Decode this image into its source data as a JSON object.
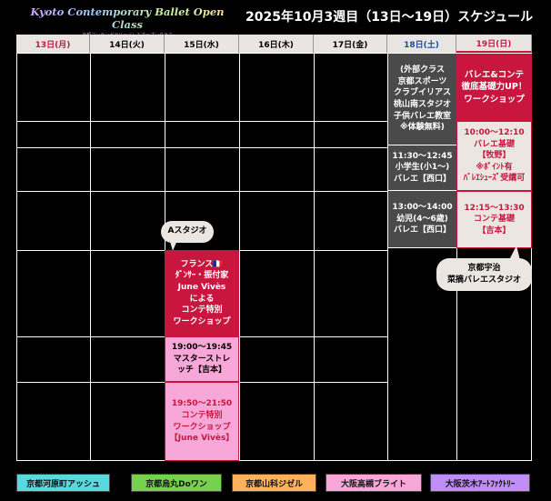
{
  "logo": {
    "title": "Kyoto Contemporary Ballet Open Class",
    "subtitle": "京都コンテンポラリーバレエオープンクラス"
  },
  "title": "2025年10月3週目（13日〜19日）スケジュール",
  "days": [
    {
      "label": "13日(月)",
      "color": "#c8163f"
    },
    {
      "label": "14日(火)",
      "color": "#000000"
    },
    {
      "label": "15日(水)",
      "color": "#000000"
    },
    {
      "label": "16日(木)",
      "color": "#000000"
    },
    {
      "label": "17日(金)",
      "color": "#000000"
    },
    {
      "label": "18日(土)",
      "color": "#1a4fa8"
    },
    {
      "label": "19日(日)",
      "color": "#c8163f"
    }
  ],
  "saturday": [
    "(外部クラス\n京都スポーツ\nクラブイリアス\n桃山南スタジオ\n子供バレエ教室\n※体験無料)",
    "11:30〜12:45\n小学生(小1〜)\nバレエ【西口】",
    "13:00〜14:00\n幼児(4〜6歳)\nバレエ【西口】"
  ],
  "sunday": [
    "バレエ&コンテ\n徹底基礎力UP！\nワークショップ",
    "10:00〜12:10\nバレエ基礎\n【牧野】\n※ﾎﾟｲﾝﾄ有\nﾊﾞﾚｴｼｭｰｽﾞ受講可",
    "12:15〜13:30\nコンテ基礎\n【吉本】"
  ],
  "sunday_studio": "京都宇治\n菜摘バレエスタジオ",
  "wednesday_studio": "Aスタジオ",
  "wednesday": [
    "フランス🇫🇷\nﾀﾞﾝｻｰ・振付家\nJune Vivès\nによる\nコンテ特別\nワークショップ",
    "19:00〜19:45\nマスターストレ\nッチ【吉本】",
    "19:50〜21:50\nコンテ特別\nワークショップ\n【June Vivès】"
  ],
  "legend": [
    {
      "label": "京都河原町アッシュ",
      "color": "#5ad8e0"
    },
    {
      "label": "京都烏丸Doワン",
      "color": "#76d150"
    },
    {
      "label": "京都山科ジゼル",
      "color": "#ffb25c"
    },
    {
      "label": "大阪高槻ブライト",
      "color": "#f7a8d8"
    },
    {
      "label": "大阪茨木ｱｰﾄﾌｧｸﾄﾘｰ",
      "color": "#c08cf5"
    }
  ]
}
